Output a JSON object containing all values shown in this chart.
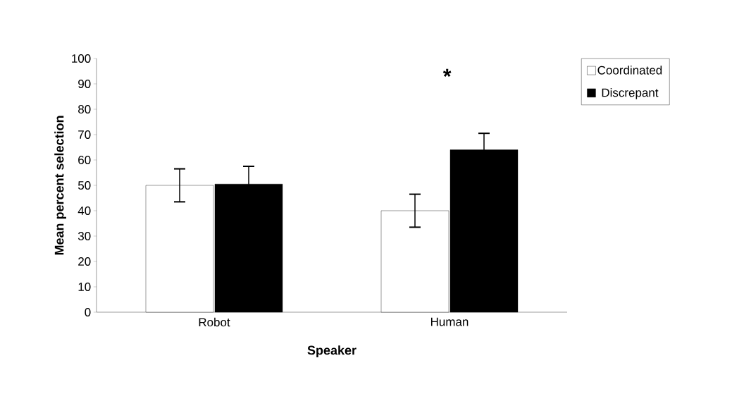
{
  "chart_data": {
    "type": "bar",
    "xlabel": "Speaker",
    "ylabel": "Mean percent selection",
    "categories": [
      "Robot",
      "Human"
    ],
    "series": [
      {
        "name": "Coordinated",
        "color": "#ffffff",
        "values": [
          50,
          40
        ],
        "errors": [
          6.5,
          6.5
        ]
      },
      {
        "name": "Discrepant",
        "color": "#000000",
        "values": [
          50.5,
          64
        ],
        "errors": [
          7,
          6.5
        ]
      }
    ],
    "ylim": [
      0,
      100
    ],
    "yticks": [
      0,
      10,
      20,
      30,
      40,
      50,
      60,
      70,
      80,
      90,
      100
    ],
    "annotations": [
      "*"
    ],
    "grid": false,
    "legend": "top right"
  }
}
